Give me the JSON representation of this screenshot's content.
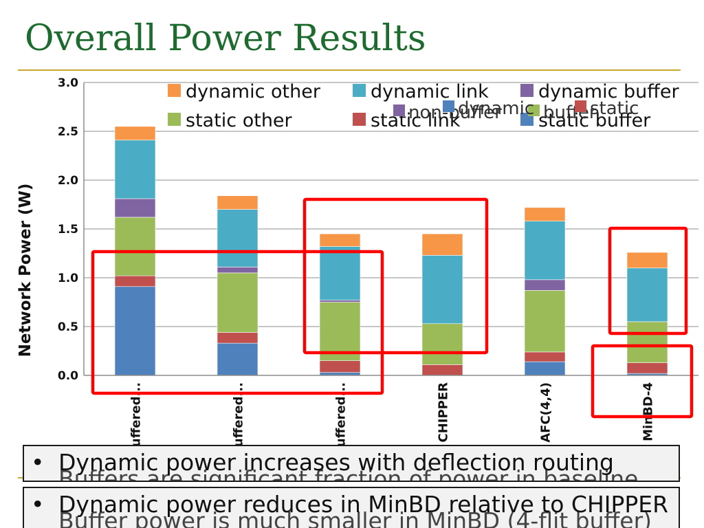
{
  "slide": {
    "title": "Overall Power Results",
    "callout1": "Dynamic power increases with deflection routing",
    "callout1_ghost": "Buffers are significant fraction of power in baseline",
    "callout2": "Dynamic power reduces in MinBD relative to CHIPPER",
    "callout2_ghost": "Buffer power is much smaller in MinBD (4-flit buffer)",
    "bullet": "•",
    "ghost_legend": [
      "non-buffer",
      "buffer",
      "dynamic",
      "static"
    ]
  },
  "colors": {
    "static_buffer": "#4f81bd",
    "static_link": "#c0504d",
    "static_other": "#9bbb59",
    "dynamic_buffer": "#8064a2",
    "dynamic_link": "#4bacc6",
    "dynamic_other": "#f79646",
    "highlight": "#ff0000",
    "title": "#1e6b2f"
  },
  "chart_data": {
    "type": "bar",
    "stacked": true,
    "ylabel": "Network Power (W)",
    "ylim": [
      0,
      3.0
    ],
    "yticks": [
      "0.0",
      "0.5",
      "1.0",
      "1.5",
      "2.0",
      "2.5",
      "3.0"
    ],
    "grid": true,
    "legend_position": "top",
    "categories": [
      "Buffered...",
      "Buffered...",
      "Buffered...",
      "CHIPPER",
      "AFC(4,4)",
      "MinBD-4"
    ],
    "series": [
      {
        "name": "static buffer",
        "key": "static_buffer",
        "values": [
          0.91,
          0.33,
          0.03,
          0.0,
          0.14,
          0.02
        ]
      },
      {
        "name": "static link",
        "key": "static_link",
        "values": [
          0.11,
          0.11,
          0.12,
          0.11,
          0.1,
          0.11
        ]
      },
      {
        "name": "static other",
        "key": "static_other",
        "values": [
          0.6,
          0.61,
          0.6,
          0.42,
          0.63,
          0.42
        ]
      },
      {
        "name": "dynamic buffer",
        "key": "dynamic_buffer",
        "values": [
          0.19,
          0.06,
          0.02,
          0.0,
          0.11,
          0.0
        ]
      },
      {
        "name": "dynamic link",
        "key": "dynamic_link",
        "values": [
          0.6,
          0.59,
          0.55,
          0.7,
          0.6,
          0.55
        ]
      },
      {
        "name": "dynamic other",
        "key": "dynamic_other",
        "values": [
          0.14,
          0.14,
          0.13,
          0.22,
          0.14,
          0.16
        ]
      }
    ],
    "legend_order": [
      "dynamic_other",
      "dynamic_link",
      "dynamic_buffer",
      "static_other",
      "static_link",
      "static_buffer"
    ]
  }
}
